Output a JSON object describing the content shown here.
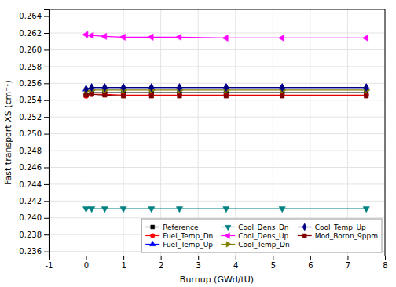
{
  "chart_data": {
    "type": "line",
    "xlabel": "Burnup (GWd/tU)",
    "ylabel": "Fast transport XS (cm⁻¹)",
    "x": [
      0.0,
      0.15,
      0.5,
      1.0,
      1.75,
      2.5,
      3.75,
      5.25,
      7.5
    ],
    "series": [
      {
        "name": "Reference",
        "color": "#000000",
        "marker": "square",
        "values": [
          0.2546,
          0.2549,
          0.2549,
          0.2549,
          0.2549,
          0.2549,
          0.2549,
          0.2549,
          0.2549
        ]
      },
      {
        "name": "Fuel_Temp_Dn",
        "color": "#ff0000",
        "marker": "circle",
        "values": [
          0.2545,
          0.2547,
          0.2547,
          0.2546,
          0.2546,
          0.2546,
          0.2546,
          0.2546,
          0.2546
        ]
      },
      {
        "name": "Fuel_Temp_Up",
        "color": "#0000ff",
        "marker": "triangle-up",
        "values": [
          0.2553,
          0.2555,
          0.2555,
          0.2555,
          0.2555,
          0.2555,
          0.2555,
          0.2555,
          0.2555
        ]
      },
      {
        "name": "Cool_Dens_Dn",
        "color": "#008080",
        "marker": "triangle-down",
        "values": [
          0.2411,
          0.2411,
          0.2411,
          0.2411,
          0.2411,
          0.2411,
          0.2411,
          0.2411,
          0.2411
        ]
      },
      {
        "name": "Cool_Dens_Up",
        "color": "#ff00ff",
        "marker": "triangle-left",
        "values": [
          0.2618,
          0.2617,
          0.2616,
          0.2615,
          0.2615,
          0.2615,
          0.2614,
          0.2614,
          0.2614
        ]
      },
      {
        "name": "Cool_Temp_Dn",
        "color": "#808000",
        "marker": "triangle-right",
        "values": [
          0.2551,
          0.2552,
          0.2552,
          0.2552,
          0.2552,
          0.2552,
          0.2552,
          0.2552,
          0.2552
        ]
      },
      {
        "name": "Cool_Temp_Up",
        "color": "#000080",
        "marker": "diamond",
        "values": [
          0.2553,
          0.2555,
          0.2555,
          0.2555,
          0.2555,
          0.2555,
          0.2555,
          0.2555,
          0.2555
        ]
      },
      {
        "name": "Mod_Boron_9ppm",
        "color": "#800000",
        "marker": "square",
        "values": [
          0.2546,
          0.2547,
          0.2546,
          0.2545,
          0.2545,
          0.2545,
          0.2545,
          0.2545,
          0.2545
        ]
      }
    ],
    "xlim": [
      -1,
      8
    ],
    "xticks": [
      -1,
      0,
      1,
      2,
      3,
      4,
      5,
      6,
      7,
      8
    ],
    "ylim": [
      0.2355,
      0.2648
    ],
    "yticks": [
      0.236,
      0.238,
      {
        "value": 0.24,
        "label": "0.240"
      },
      0.242,
      0.244,
      0.246,
      0.248,
      {
        "value": 0.25,
        "label": "0.250"
      },
      0.252,
      0.254,
      0.256,
      0.258,
      {
        "value": 0.26,
        "label": "0.260"
      },
      0.262,
      0.264
    ],
    "grid": true,
    "legend": "lower right"
  }
}
